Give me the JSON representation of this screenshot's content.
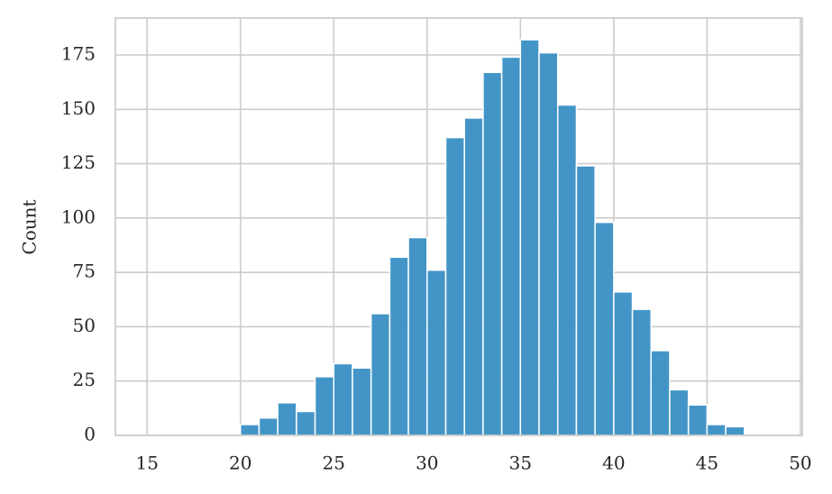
{
  "chart_data": {
    "type": "histogram",
    "ylabel": "Count",
    "bins": [
      15,
      16,
      17,
      18,
      19,
      20,
      21,
      22,
      23,
      24,
      25,
      26,
      27,
      28,
      29,
      30,
      31,
      32,
      33,
      34,
      35,
      36,
      37,
      38,
      39,
      40,
      41,
      42,
      43,
      44,
      45,
      46,
      47,
      48,
      49,
      50
    ],
    "values": [
      0,
      0,
      0,
      0,
      0,
      5,
      8,
      15,
      11,
      27,
      33,
      31,
      56,
      82,
      91,
      76,
      137,
      146,
      167,
      174,
      182,
      176,
      152,
      124,
      98,
      66,
      58,
      39,
      21,
      14,
      5,
      4,
      0,
      0,
      0
    ],
    "color": "#3a8fc4",
    "xlim": [
      13.3,
      50.1
    ],
    "xticks": [
      15,
      20,
      25,
      30,
      35,
      40,
      45,
      50
    ],
    "ylim": [
      0,
      192
    ],
    "yticks": [
      0,
      25,
      50,
      75,
      100,
      125,
      150,
      175
    ],
    "grid": true
  }
}
